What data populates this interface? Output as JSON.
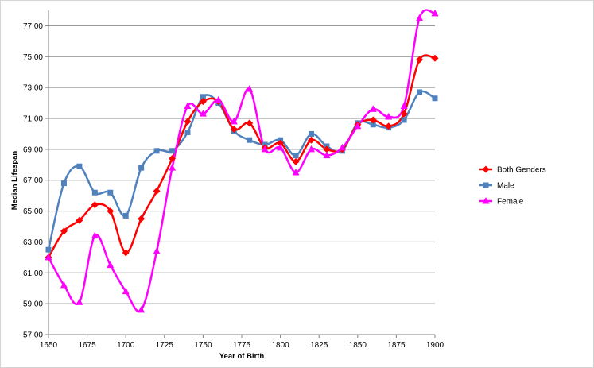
{
  "chart_data": {
    "type": "line",
    "title": "",
    "xlabel": "Year of Birth",
    "ylabel": "Median  Lifespan",
    "xlim": [
      1650,
      1900
    ],
    "ylim": [
      57,
      78
    ],
    "xticks": [
      1650,
      1675,
      1700,
      1725,
      1750,
      1775,
      1800,
      1825,
      1850,
      1875,
      1900
    ],
    "yticks": [
      57,
      59,
      61,
      63,
      65,
      67,
      69,
      71,
      73,
      75,
      77
    ],
    "y_tick_format": "2 decimals",
    "grid": "horizontal",
    "legend_position": "right",
    "x": [
      1650,
      1660,
      1670,
      1680,
      1690,
      1700,
      1710,
      1720,
      1730,
      1740,
      1750,
      1760,
      1770,
      1780,
      1790,
      1800,
      1810,
      1820,
      1830,
      1840,
      1850,
      1860,
      1870,
      1880,
      1890,
      1900
    ],
    "series": [
      {
        "name": "Both Genders",
        "color": "#ff0000",
        "marker": "diamond",
        "values": [
          62.0,
          63.7,
          64.4,
          65.4,
          65.0,
          62.3,
          64.5,
          66.3,
          68.4,
          70.8,
          72.1,
          72.1,
          70.3,
          70.7,
          69.1,
          69.4,
          68.2,
          69.6,
          69.0,
          69.0,
          70.6,
          70.9,
          70.5,
          71.3,
          74.8,
          74.9
        ]
      },
      {
        "name": "Male",
        "color": "#4f81bd",
        "marker": "square",
        "values": [
          62.5,
          66.8,
          67.9,
          66.2,
          66.2,
          64.7,
          67.8,
          68.9,
          68.9,
          70.1,
          72.4,
          72.0,
          70.2,
          69.6,
          69.3,
          69.6,
          68.6,
          70.0,
          69.2,
          68.9,
          70.7,
          70.6,
          70.4,
          70.9,
          72.7,
          72.3
        ]
      },
      {
        "name": "Female",
        "color": "#ff00ff",
        "marker": "triangle",
        "values": [
          62.0,
          60.2,
          59.1,
          63.4,
          61.5,
          59.8,
          58.6,
          62.4,
          67.8,
          71.8,
          71.3,
          72.2,
          70.8,
          72.9,
          69.0,
          69.1,
          67.5,
          69.0,
          68.6,
          69.1,
          70.5,
          71.6,
          71.1,
          71.8,
          77.5,
          77.8
        ]
      }
    ]
  }
}
